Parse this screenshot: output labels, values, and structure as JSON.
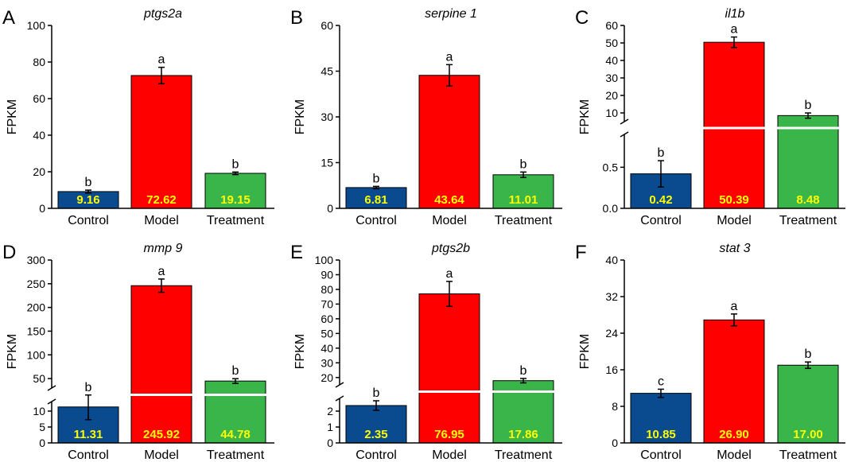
{
  "chart_data": [
    {
      "type": "bar",
      "panel": "A",
      "title": "ptgs2a",
      "ylabel": "FPKM",
      "categories": [
        "Control",
        "Model",
        "Treatment"
      ],
      "values": [
        9.16,
        72.62,
        19.15
      ],
      "value_labels": [
        "9.16",
        "72.62",
        "19.15"
      ],
      "errors": [
        0.8,
        4.5,
        0.7
      ],
      "significance": [
        "b",
        "a",
        "b"
      ],
      "colors": [
        "#0a4a8f",
        "#ff0000",
        "#3ab54a"
      ],
      "broken_axis": false,
      "ylim": [
        0,
        100
      ],
      "yticks": [
        0,
        20,
        40,
        60,
        80,
        100
      ]
    },
    {
      "type": "bar",
      "panel": "B",
      "title": "serpine 1",
      "ylabel": "FPKM",
      "categories": [
        "Control",
        "Model",
        "Treatment"
      ],
      "values": [
        6.81,
        43.64,
        11.01
      ],
      "value_labels": [
        "6.81",
        "43.64",
        "11.01"
      ],
      "errors": [
        0.4,
        3.5,
        0.9
      ],
      "significance": [
        "b",
        "a",
        "b"
      ],
      "colors": [
        "#0a4a8f",
        "#ff0000",
        "#3ab54a"
      ],
      "broken_axis": false,
      "ylim": [
        0,
        60
      ],
      "yticks": [
        0,
        15,
        30,
        45,
        60
      ]
    },
    {
      "type": "bar",
      "panel": "C",
      "title": "il1b",
      "ylabel": "FPKM",
      "categories": [
        "Control",
        "Model",
        "Treatment"
      ],
      "values": [
        0.42,
        50.39,
        8.48
      ],
      "value_labels": [
        "0.42",
        "50.39",
        "8.48"
      ],
      "errors": [
        0.16,
        3.0,
        1.5
      ],
      "significance": [
        "b",
        "a",
        "b"
      ],
      "colors": [
        "#0a4a8f",
        "#ff0000",
        "#3ab54a"
      ],
      "broken_axis": true,
      "lower_range": [
        0,
        0.9
      ],
      "lower_ticks": [
        0.0,
        0.5
      ],
      "upper_range": [
        5,
        60
      ],
      "upper_ticks": [
        10,
        20,
        30,
        40,
        50,
        60
      ]
    },
    {
      "type": "bar",
      "panel": "D",
      "title": "mmp 9",
      "ylabel": "FPKM",
      "categories": [
        "Control",
        "Model",
        "Treatment"
      ],
      "values": [
        11.31,
        245.92,
        44.78
      ],
      "value_labels": [
        "11.31",
        "245.92",
        "44.78"
      ],
      "errors": [
        4.0,
        14,
        5
      ],
      "significance": [
        "b",
        "a",
        "b"
      ],
      "colors": [
        "#0a4a8f",
        "#ff0000",
        "#3ab54a"
      ],
      "broken_axis": true,
      "lower_range": [
        0,
        13
      ],
      "lower_ticks": [
        0,
        5,
        10
      ],
      "upper_range": [
        30,
        300
      ],
      "upper_ticks": [
        50,
        100,
        150,
        200,
        250,
        300
      ]
    },
    {
      "type": "bar",
      "panel": "E",
      "title": "ptgs2b",
      "ylabel": "FPKM",
      "categories": [
        "Control",
        "Model",
        "Treatment"
      ],
      "values": [
        2.35,
        76.95,
        17.86
      ],
      "value_labels": [
        "2.35",
        "76.95",
        "17.86"
      ],
      "errors": [
        0.3,
        8.5,
        1.5
      ],
      "significance": [
        "b",
        "a",
        "b"
      ],
      "colors": [
        "#0a4a8f",
        "#ff0000",
        "#3ab54a"
      ],
      "broken_axis": true,
      "lower_range": [
        0,
        2.8
      ],
      "lower_ticks": [
        0,
        1,
        2
      ],
      "upper_range": [
        15,
        100
      ],
      "upper_ticks": [
        20,
        30,
        40,
        50,
        60,
        70,
        80,
        90,
        100
      ]
    },
    {
      "type": "bar",
      "panel": "F",
      "title": "stat 3",
      "ylabel": "FPKM",
      "categories": [
        "Control",
        "Model",
        "Treatment"
      ],
      "values": [
        10.85,
        26.9,
        17.0
      ],
      "value_labels": [
        "10.85",
        "26.90",
        "17.00"
      ],
      "errors": [
        0.9,
        1.3,
        0.7
      ],
      "significance": [
        "c",
        "a",
        "b"
      ],
      "colors": [
        "#0a4a8f",
        "#ff0000",
        "#3ab54a"
      ],
      "broken_axis": false,
      "ylim": [
        0,
        40
      ],
      "yticks": [
        0,
        8,
        16,
        24,
        32,
        40
      ]
    }
  ]
}
